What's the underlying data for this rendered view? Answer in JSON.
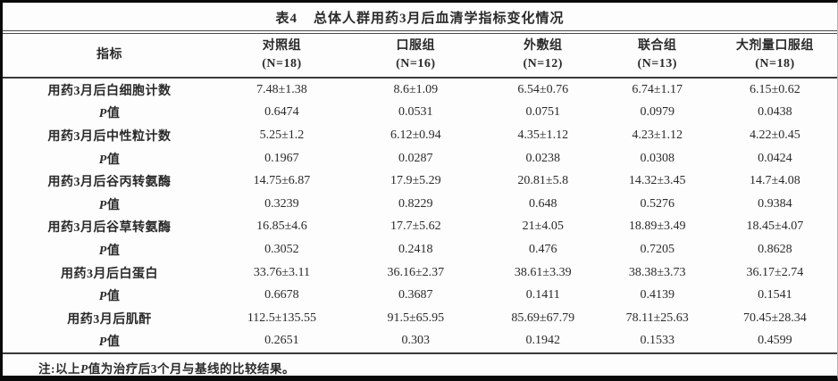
{
  "title": {
    "number": "表4",
    "text": "总体人群用药3月后血清学指标变化情况"
  },
  "table": {
    "columns": [
      {
        "label": "指标",
        "sub": ""
      },
      {
        "label": "对照组",
        "sub": "(N=18)"
      },
      {
        "label": "口服组",
        "sub": "(N=16)"
      },
      {
        "label": "外敷组",
        "sub": "(N=12)"
      },
      {
        "label": "联合组",
        "sub": "(N=13)"
      },
      {
        "label": "大剂量口服组",
        "sub": "(N=18)"
      }
    ],
    "rows": [
      {
        "label": "用药3月后白细胞计数",
        "values": [
          "7.48±1.38",
          "8.6±1.09",
          "6.54±0.76",
          "6.74±1.17",
          "6.15±0.62"
        ]
      },
      {
        "label": "P值",
        "values": [
          "0.6474",
          "0.0531",
          "0.0751",
          "0.0979",
          "0.0438"
        ]
      },
      {
        "label": "用药3月后中性粒计数",
        "values": [
          "5.25±1.2",
          "6.12±0.94",
          "4.35±1.12",
          "4.23±1.12",
          "4.22±0.45"
        ]
      },
      {
        "label": "P值",
        "values": [
          "0.1967",
          "0.0287",
          "0.0238",
          "0.0308",
          "0.0424"
        ]
      },
      {
        "label": "用药3月后谷丙转氨酶",
        "values": [
          "14.75±6.87",
          "17.9±5.29",
          "20.81±5.8",
          "14.32±3.45",
          "14.7±4.08"
        ]
      },
      {
        "label": "P值",
        "values": [
          "0.3239",
          "0.8229",
          "0.648",
          "0.5276",
          "0.9384"
        ]
      },
      {
        "label": "用药3月后谷草转氨酶",
        "values": [
          "16.85±4.6",
          "17.7±5.62",
          "21±4.05",
          "18.89±3.49",
          "18.45±4.07"
        ]
      },
      {
        "label": "P值",
        "values": [
          "0.3052",
          "0.2418",
          "0.476",
          "0.7205",
          "0.8628"
        ]
      },
      {
        "label": "用药3月后白蛋白",
        "values": [
          "33.76±3.11",
          "36.16±2.37",
          "38.61±3.39",
          "38.38±3.73",
          "36.17±2.74"
        ]
      },
      {
        "label": "P值",
        "values": [
          "0.6678",
          "0.3687",
          "0.1411",
          "0.4139",
          "0.1541"
        ]
      },
      {
        "label": "用药3月后肌酐",
        "values": [
          "112.5±135.55",
          "91.5±65.95",
          "85.69±67.79",
          "78.11±25.63",
          "70.45±28.34"
        ]
      },
      {
        "label": "P值",
        "values": [
          "0.2651",
          "0.303",
          "0.1942",
          "0.1533",
          "0.4599"
        ]
      }
    ],
    "column_widths_percent": [
      25.6,
      15.7,
      16.4,
      14.1,
      13.3,
      14.9
    ]
  },
  "note": "注:以上P值为治疗后3个月与基线的比较结果。",
  "colors": {
    "text": "#2a2a2a",
    "thin_rule": "#4a4a4a",
    "frame": "#0a0a0a",
    "background": "#fdfdfd"
  }
}
